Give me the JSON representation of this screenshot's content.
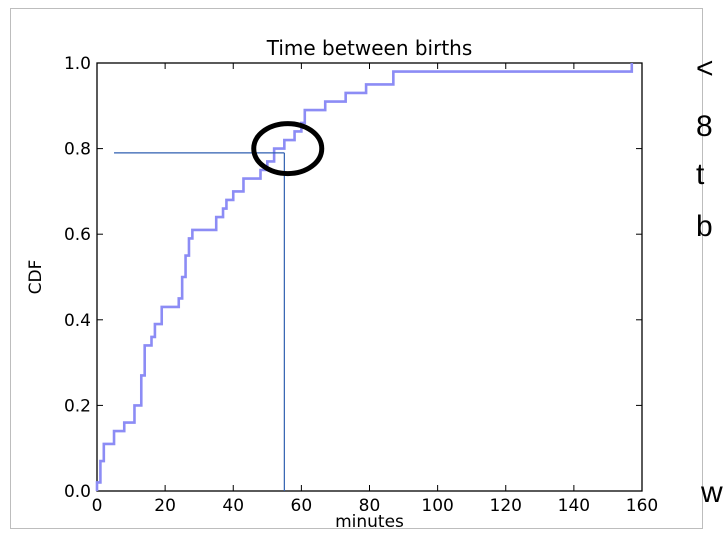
{
  "side_text": [
    "<",
    "8",
    "t",
    "b",
    "w"
  ],
  "colors": {
    "cdf_line": "#8c8cf5",
    "guide_line": "#2f5fb0",
    "marker": "#000000",
    "axis": "#000000"
  },
  "chart_data": {
    "type": "line",
    "step": true,
    "title": "Time between births",
    "xlabel": "minutes",
    "ylabel": "CDF",
    "xlim": [
      0,
      160
    ],
    "ylim": [
      0,
      1
    ],
    "xticks": [
      0,
      20,
      40,
      60,
      80,
      100,
      120,
      140,
      160
    ],
    "yticks": [
      0.0,
      0.2,
      0.4,
      0.6,
      0.8,
      1.0
    ],
    "xtick_labels": [
      "0",
      "20",
      "40",
      "60",
      "80",
      "100",
      "120",
      "140",
      "160"
    ],
    "ytick_labels": [
      "0.0",
      "0.2",
      "0.4",
      "0.6",
      "0.8",
      "1.0"
    ],
    "grid": false,
    "series": [
      {
        "x": [
          0,
          1,
          2,
          3,
          5,
          8,
          11,
          13,
          14,
          16,
          17,
          19,
          22,
          24,
          25,
          26,
          27,
          28,
          29,
          30,
          35,
          37,
          38,
          40,
          43,
          45,
          48,
          50,
          52,
          55,
          58,
          60,
          61,
          67,
          73,
          79,
          87,
          156,
          157
        ],
        "y": [
          0.02,
          0.07,
          0.11,
          0.11,
          0.14,
          0.16,
          0.2,
          0.27,
          0.34,
          0.36,
          0.39,
          0.43,
          0.43,
          0.45,
          0.5,
          0.55,
          0.59,
          0.61,
          0.61,
          0.61,
          0.64,
          0.66,
          0.68,
          0.7,
          0.73,
          0.73,
          0.75,
          0.77,
          0.8,
          0.82,
          0.84,
          0.86,
          0.89,
          0.91,
          0.93,
          0.95,
          0.98,
          0.98,
          1.0
        ]
      }
    ],
    "annotations": {
      "guide_y": 0.79,
      "guide_x_start": 5,
      "guide_x": 55,
      "circle_center": [
        56,
        0.8
      ]
    }
  }
}
